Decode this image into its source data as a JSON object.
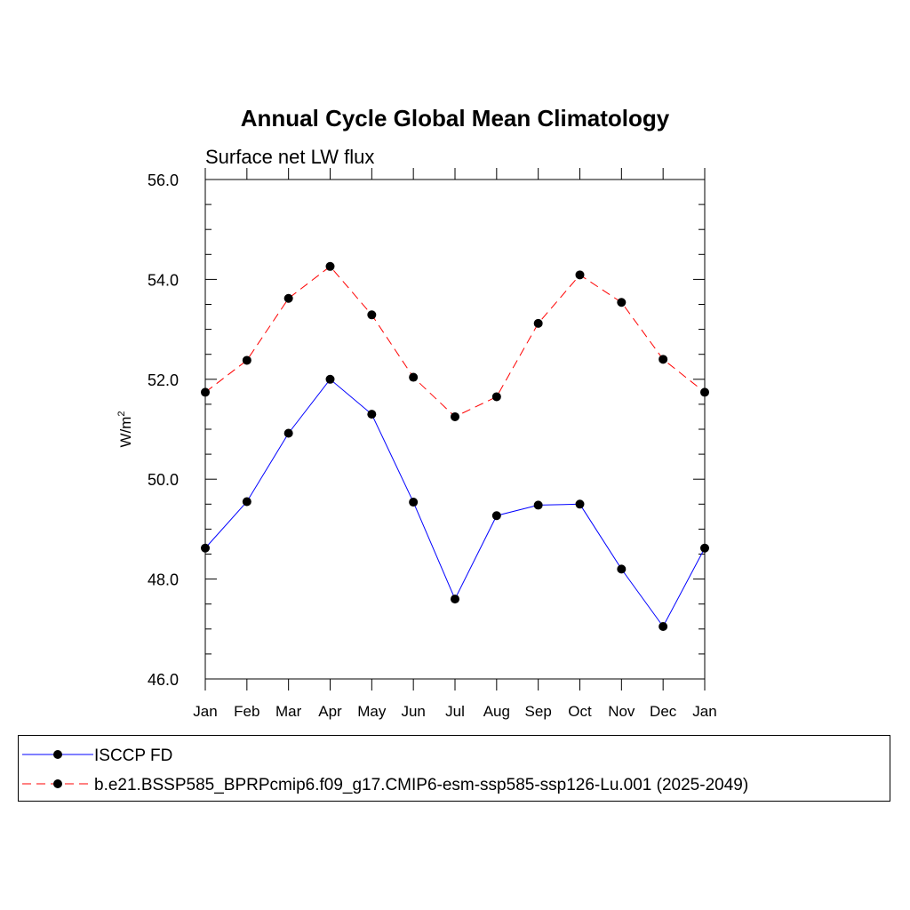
{
  "chart_data": {
    "type": "line",
    "title": "Annual Cycle Global Mean Climatology",
    "subtitle": "Surface net LW flux",
    "ylabel": "W/m",
    "ylabel_superscript": "2",
    "categories": [
      "Jan",
      "Feb",
      "Mar",
      "Apr",
      "May",
      "Jun",
      "Jul",
      "Aug",
      "Sep",
      "Oct",
      "Nov",
      "Dec",
      "Jan"
    ],
    "ylim": [
      46.0,
      56.0
    ],
    "yticks": [
      "46.0",
      "48.0",
      "50.0",
      "52.0",
      "54.0",
      "56.0"
    ],
    "series": [
      {
        "name": "ISCCP FD",
        "color": "#0000ff",
        "dash": "solid",
        "values": [
          48.62,
          49.55,
          50.92,
          52.0,
          51.3,
          49.54,
          47.6,
          49.27,
          49.48,
          49.5,
          48.2,
          47.05,
          48.62
        ]
      },
      {
        "name": "b.e21.BSSP585_BPRPcmip6.f09_g17.CMIP6-esm-ssp585-ssp126-Lu.001 (2025-2049)",
        "color": "#ff0000",
        "dash": "dashed",
        "values": [
          51.74,
          52.38,
          53.62,
          54.26,
          53.29,
          52.04,
          51.25,
          51.65,
          53.12,
          54.09,
          53.54,
          52.4,
          51.74
        ]
      }
    ],
    "legend_position": "bottom",
    "marker": "filled-circle"
  }
}
